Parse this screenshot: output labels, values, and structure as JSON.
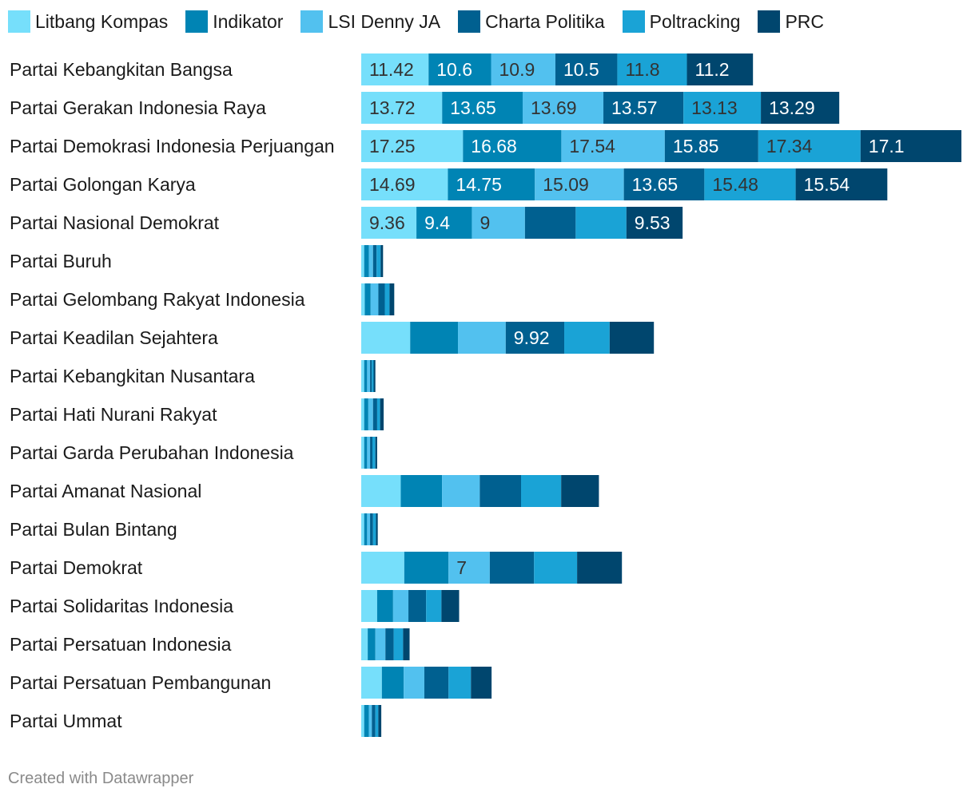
{
  "chart_data": {
    "type": "bar",
    "orientation": "horizontal",
    "stacked": true,
    "legend_position": "top-left",
    "grid": false,
    "categories": [
      "Partai Kebangkitan Bangsa",
      "Partai Gerakan Indonesia Raya",
      "Partai Demokrasi Indonesia Perjuangan",
      "Partai Golongan Karya",
      "Partai Nasional Demokrat",
      "Partai Buruh",
      "Partai Gelombang Rakyat Indonesia",
      "Partai Keadilan Sejahtera",
      "Partai Kebangkitan Nusantara",
      "Partai Hati Nurani Rakyat",
      "Partai Garda Perubahan Indonesia",
      "Partai Amanat Nasional",
      "Partai Bulan Bintang",
      "Partai Demokrat",
      "Partai Solidaritas Indonesia",
      "Partai Persatuan Indonesia",
      "Partai Persatuan Pembangunan",
      "Partai Ummat"
    ],
    "series": [
      {
        "name": "Litbang Kompas",
        "color": "#76dffb",
        "text_dark": true,
        "values": [
          11.42,
          13.72,
          17.25,
          14.69,
          9.36,
          0.5,
          0.6,
          8.3,
          0.5,
          0.5,
          0.5,
          6.7,
          0.5,
          7.3,
          2.7,
          1.1,
          3.5,
          0.5
        ]
      },
      {
        "name": "Indikator",
        "color": "#0084b4",
        "text_dark": false,
        "values": [
          10.6,
          13.65,
          16.68,
          14.75,
          9.4,
          0.8,
          1.0,
          8.1,
          0.5,
          0.7,
          0.5,
          7.0,
          0.5,
          7.5,
          2.7,
          1.3,
          3.7,
          0.8
        ]
      },
      {
        "name": "LSI Denny JA",
        "color": "#52c1ef",
        "text_dark": true,
        "values": [
          10.9,
          13.69,
          17.54,
          15.09,
          9.0,
          0.7,
          1.3,
          8.1,
          0.5,
          0.8,
          0.5,
          6.4,
          0.5,
          7.0,
          2.6,
          1.7,
          3.5,
          0.5
        ]
      },
      {
        "name": "Charta Politika",
        "color": "#006090",
        "text_dark": false,
        "values": [
          10.5,
          13.57,
          15.85,
          13.65,
          8.6,
          0.6,
          1.1,
          9.92,
          0.3,
          0.7,
          0.4,
          7.0,
          0.5,
          7.5,
          3.0,
          1.4,
          4.1,
          0.6
        ]
      },
      {
        "name": "Poltracking",
        "color": "#1aa3d6",
        "text_dark": true,
        "values": [
          11.8,
          13.13,
          17.34,
          15.48,
          8.6,
          0.7,
          0.8,
          7.7,
          0.3,
          0.5,
          0.5,
          6.8,
          0.5,
          7.3,
          2.6,
          1.6,
          3.8,
          0.5
        ]
      },
      {
        "name": "PRC",
        "color": "#00466e",
        "text_dark": false,
        "values": [
          11.2,
          13.29,
          17.1,
          15.54,
          9.53,
          0.4,
          0.8,
          7.5,
          0.3,
          0.6,
          0.3,
          6.4,
          0.3,
          7.6,
          3.0,
          1.1,
          3.5,
          0.5
        ]
      }
    ],
    "labeled_values": [
      [
        11.42,
        10.6,
        10.9,
        10.5,
        11.8,
        11.2
      ],
      [
        13.72,
        13.65,
        13.69,
        13.57,
        13.13,
        13.29
      ],
      [
        17.25,
        16.68,
        17.54,
        15.85,
        17.34,
        17.1
      ],
      [
        14.69,
        14.75,
        15.09,
        13.65,
        15.48,
        15.54
      ],
      [
        9.36,
        9.4,
        9,
        null,
        null,
        9.53
      ],
      [
        null,
        null,
        null,
        null,
        null,
        null
      ],
      [
        null,
        null,
        null,
        null,
        null,
        null
      ],
      [
        null,
        null,
        null,
        9.92,
        null,
        null
      ],
      [
        null,
        null,
        null,
        null,
        null,
        null
      ],
      [
        null,
        null,
        null,
        null,
        null,
        null
      ],
      [
        null,
        null,
        null,
        null,
        null,
        null
      ],
      [
        null,
        null,
        null,
        null,
        null,
        null
      ],
      [
        null,
        null,
        null,
        null,
        null,
        null
      ],
      [
        null,
        null,
        7,
        null,
        null,
        null
      ],
      [
        null,
        null,
        null,
        null,
        null,
        null
      ],
      [
        null,
        null,
        null,
        null,
        null,
        null
      ],
      [
        null,
        null,
        null,
        null,
        null,
        null
      ],
      [
        null,
        null,
        null,
        null,
        null,
        null
      ]
    ]
  },
  "footer": {
    "credit": "Created with Datawrapper"
  }
}
